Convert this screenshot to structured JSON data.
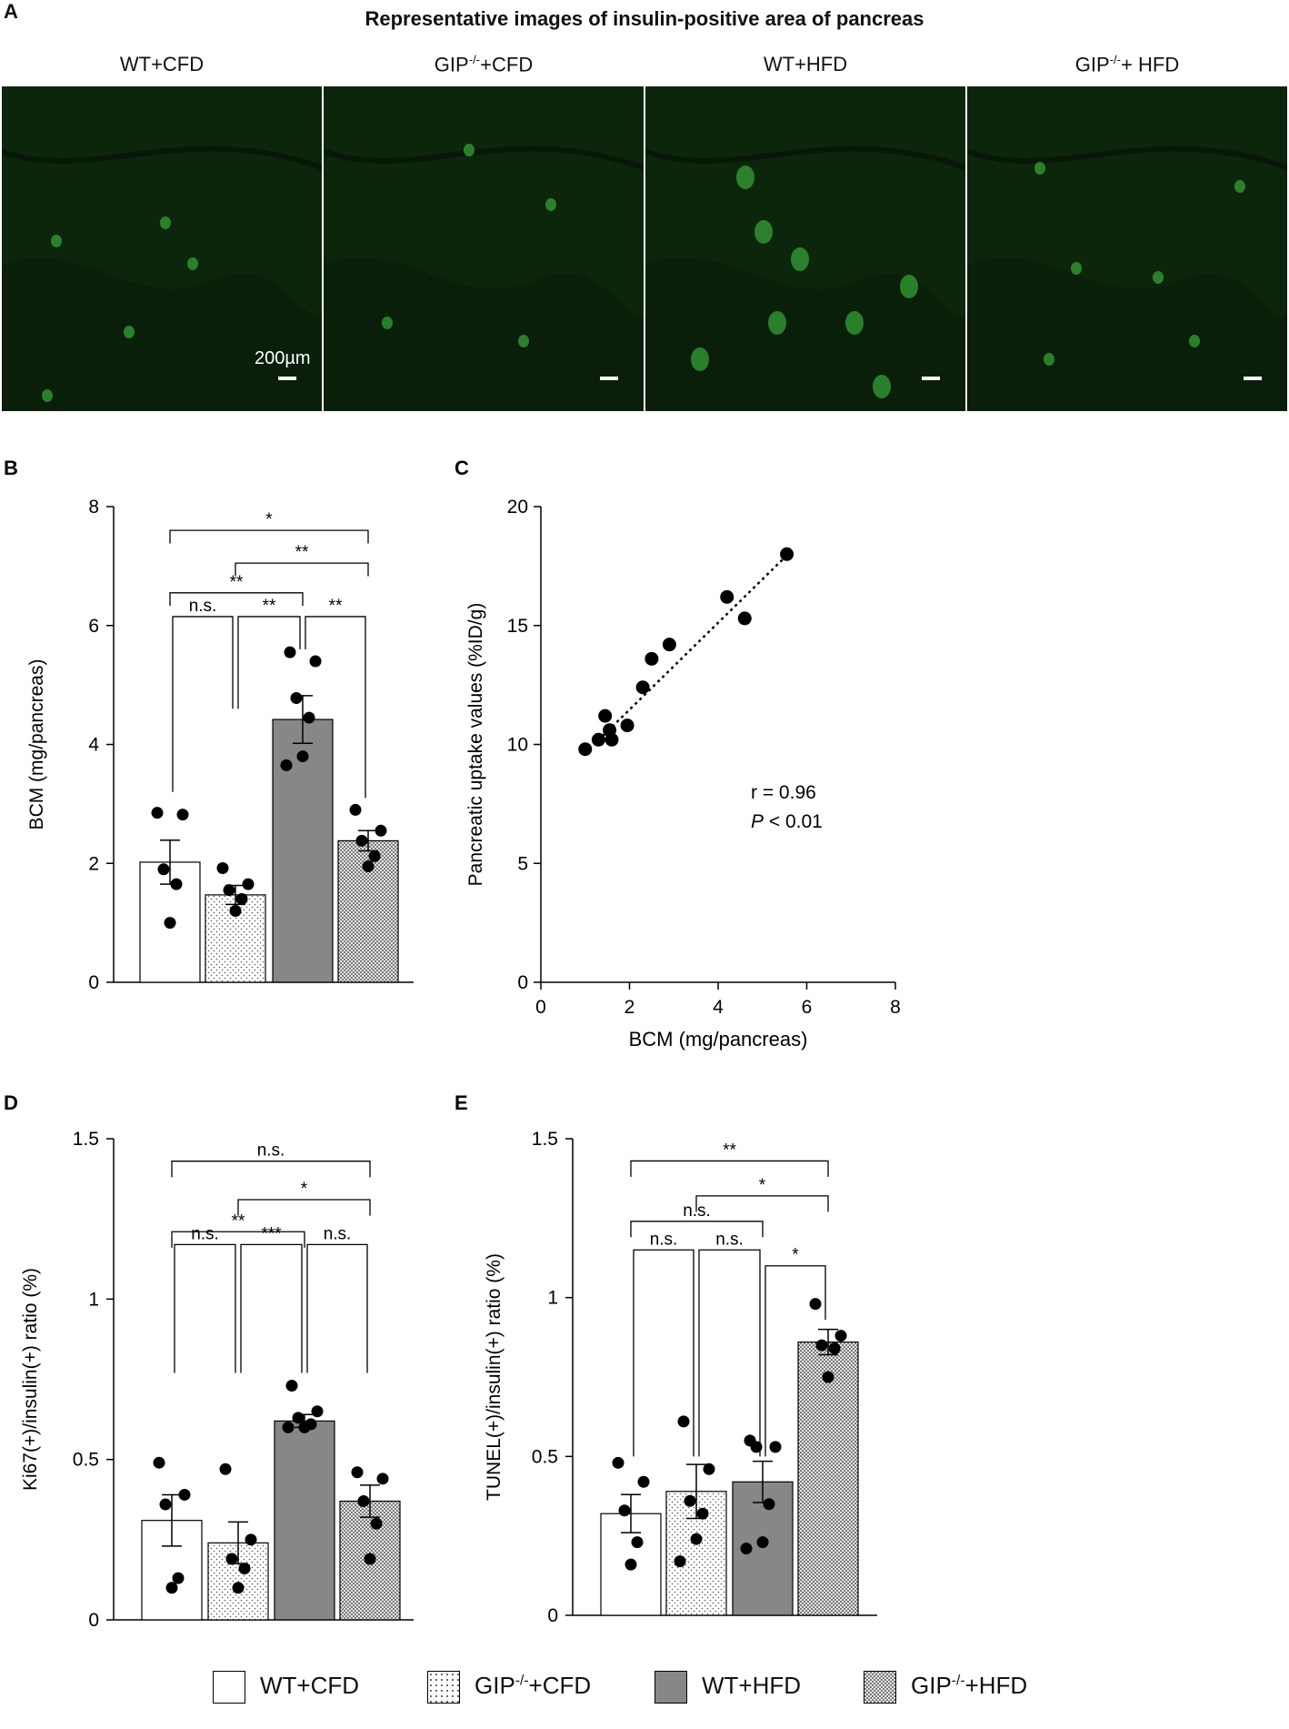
{
  "panel_a": {
    "letter": "A",
    "title": "Representative images of insulin-positive  area of pancreas",
    "images": [
      {
        "label_base": "WT+CFD",
        "sup": "",
        "label_rest": ""
      },
      {
        "label_base": "GIP",
        "sup": "-/-",
        "label_rest": "+CFD"
      },
      {
        "label_base": "WT+HFD",
        "sup": "",
        "label_rest": ""
      },
      {
        "label_base": "GIP",
        "sup": "-/-",
        "label_rest": "+ HFD"
      }
    ],
    "scale_bar_label": "200µm"
  },
  "legend": [
    {
      "base": "WT+CFD",
      "sup": "",
      "rest": "",
      "pattern": "white"
    },
    {
      "base": "GIP",
      "sup": "-/-",
      "rest": "+CFD",
      "pattern": "dots"
    },
    {
      "base": "WT+HFD",
      "sup": "",
      "rest": "",
      "pattern": "gray"
    },
    {
      "base": "GIP",
      "sup": "-/-",
      "rest": "+HFD",
      "pattern": "checker"
    }
  ],
  "chart_data": [
    {
      "id": "B",
      "letter": "B",
      "type": "bar",
      "ylabel": "BCM (mg/pancreas)",
      "ylim": [
        0,
        8
      ],
      "yticks": [
        0,
        2,
        4,
        6,
        8
      ],
      "ytick_labels": [
        "0",
        "2",
        "4",
        "6",
        "8"
      ],
      "categories": [
        "WT+CFD",
        "GIP-/-+CFD",
        "WT+HFD",
        "GIP-/-+HFD"
      ],
      "values": [
        2.02,
        1.47,
        4.42,
        2.38
      ],
      "errors": [
        0.37,
        0.16,
        0.4,
        0.17
      ],
      "points": [
        [
          2.85,
          2.82,
          1.9,
          1.65,
          1.0
        ],
        [
          1.92,
          1.65,
          1.55,
          1.4,
          1.2
        ],
        [
          5.55,
          5.4,
          4.78,
          4.45,
          3.8,
          3.65
        ],
        [
          2.9,
          2.55,
          2.38,
          2.12,
          1.95
        ]
      ],
      "brackets": [
        {
          "from": 0,
          "to": 3,
          "level": 7.6,
          "drop": 0.22,
          "label": "*"
        },
        {
          "from": 1,
          "to": 3,
          "level": 7.05,
          "drop": 0.22,
          "label": "**"
        },
        {
          "from": 0,
          "to": 2,
          "level": 6.55,
          "drop": 0.22,
          "label": "**"
        },
        {
          "from": 0,
          "to": 1,
          "level": 6.15,
          "drop_left": 3.2,
          "drop_right": 4.6,
          "label": "n.s."
        },
        {
          "from": 1,
          "to": 2,
          "level": 6.15,
          "drop_left": 4.6,
          "drop_right": 5.6,
          "label": "**"
        },
        {
          "from": 2,
          "to": 3,
          "level": 6.15,
          "drop_left": 5.6,
          "drop_right": 3.1,
          "label": "**"
        }
      ]
    },
    {
      "id": "C",
      "letter": "C",
      "type": "scatter",
      "xlabel": "BCM (mg/pancreas)",
      "ylabel": "Pancreatic uptake values  (%ID/g)",
      "xlim": [
        0,
        8
      ],
      "ylim": [
        0,
        20
      ],
      "xticks": [
        0,
        2,
        4,
        6,
        8
      ],
      "xtick_labels": [
        "0",
        "2",
        "4",
        "6",
        "8"
      ],
      "yticks": [
        0,
        5,
        10,
        15,
        20
      ],
      "ytick_labels": [
        "0",
        "5",
        "10",
        "15",
        "20"
      ],
      "points": [
        [
          1.0,
          9.8
        ],
        [
          1.3,
          10.2
        ],
        [
          1.45,
          11.2
        ],
        [
          1.55,
          10.6
        ],
        [
          1.6,
          10.2
        ],
        [
          1.95,
          10.8
        ],
        [
          2.3,
          12.4
        ],
        [
          2.5,
          13.6
        ],
        [
          2.9,
          14.2
        ],
        [
          4.2,
          16.2
        ],
        [
          4.6,
          15.3
        ],
        [
          5.55,
          18.0
        ]
      ],
      "fit_line": [
        [
          1.2,
          10.0
        ],
        [
          5.55,
          17.95
        ]
      ],
      "annotation_r": "r = 0.96",
      "annotation_p_italic": "P",
      "annotation_p_rest": " < 0.01"
    },
    {
      "id": "D",
      "letter": "D",
      "type": "bar",
      "ylabel": "Ki67(+)/insulin(+)  ratio  (%)",
      "ylim": [
        0,
        1.5
      ],
      "yticks": [
        0,
        0.5,
        1,
        1.5
      ],
      "ytick_labels": [
        "0",
        "0.5",
        "1",
        "1.5"
      ],
      "categories": [
        "WT+CFD",
        "GIP-/-+CFD",
        "WT+HFD",
        "GIP-/-+HFD"
      ],
      "values": [
        0.31,
        0.24,
        0.62,
        0.37
      ],
      "errors": [
        0.08,
        0.065,
        0.02,
        0.05
      ],
      "points": [
        [
          0.49,
          0.39,
          0.36,
          0.13,
          0.1
        ],
        [
          0.47,
          0.25,
          0.19,
          0.16,
          0.1
        ],
        [
          0.73,
          0.65,
          0.63,
          0.61,
          0.6,
          0.6
        ],
        [
          0.46,
          0.44,
          0.37,
          0.3,
          0.19
        ]
      ],
      "brackets": [
        {
          "from": 0,
          "to": 3,
          "level": 1.43,
          "drop": 0.05,
          "label": "n.s."
        },
        {
          "from": 1,
          "to": 3,
          "level": 1.31,
          "drop": 0.05,
          "label": "*"
        },
        {
          "from": 0,
          "to": 2,
          "level": 1.21,
          "drop": 0.05,
          "label": "**"
        },
        {
          "from": 0,
          "to": 1,
          "level": 1.17,
          "drop_left": 0.77,
          "drop_right": 0.77,
          "label": "n.s."
        },
        {
          "from": 1,
          "to": 2,
          "level": 1.17,
          "drop_left": 0.77,
          "drop_right": 0.77,
          "label": "***"
        },
        {
          "from": 2,
          "to": 3,
          "level": 1.17,
          "drop_left": 0.77,
          "drop_right": 0.77,
          "label": "n.s."
        }
      ]
    },
    {
      "id": "E",
      "letter": "E",
      "type": "bar",
      "ylabel": "TUNEL(+)/insulin(+)  ratio  (%)",
      "ylim": [
        0,
        1.5
      ],
      "yticks": [
        0,
        0.5,
        1,
        1.5
      ],
      "ytick_labels": [
        "0",
        "0.5",
        "1",
        "1.5"
      ],
      "categories": [
        "WT+CFD",
        "GIP-/-+CFD",
        "WT+HFD",
        "GIP-/-+HFD"
      ],
      "values": [
        0.32,
        0.39,
        0.42,
        0.86
      ],
      "errors": [
        0.06,
        0.085,
        0.065,
        0.04
      ],
      "points": [
        [
          0.48,
          0.42,
          0.33,
          0.23,
          0.16
        ],
        [
          0.61,
          0.46,
          0.36,
          0.32,
          0.24,
          0.17
        ],
        [
          0.55,
          0.53,
          0.53,
          0.35,
          0.23,
          0.21
        ],
        [
          0.98,
          0.88,
          0.85,
          0.84,
          0.75
        ]
      ],
      "brackets": [
        {
          "from": 0,
          "to": 3,
          "level": 1.43,
          "drop": 0.05,
          "label": "**"
        },
        {
          "from": 1,
          "to": 3,
          "level": 1.32,
          "drop": 0.05,
          "label": "*"
        },
        {
          "from": 0,
          "to": 2,
          "level": 1.24,
          "drop": 0.05,
          "label": "n.s."
        },
        {
          "from": 0,
          "to": 1,
          "level": 1.15,
          "drop_left": 0.5,
          "drop_right": 0.5,
          "label": "n.s."
        },
        {
          "from": 1,
          "to": 2,
          "level": 1.15,
          "drop_left": 0.5,
          "drop_right": 0.5,
          "label": "n.s."
        },
        {
          "from": 2,
          "to": 3,
          "level": 1.1,
          "drop_left": 0.5,
          "drop_right": 0.93,
          "label": "*"
        }
      ]
    }
  ]
}
